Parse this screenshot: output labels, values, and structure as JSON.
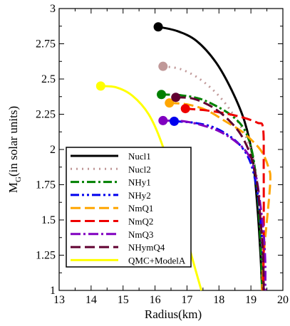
{
  "chart_data": {
    "type": "line",
    "xlabel": "Radius(km)",
    "ylabel_main": "M",
    "ylabel_sub": "G",
    "ylabel_rest": "(in solar units)",
    "xlim": [
      13,
      20
    ],
    "ylim": [
      1,
      3
    ],
    "xticks": [
      "13",
      "14",
      "15",
      "16",
      "17",
      "18",
      "19",
      "20"
    ],
    "yticks": [
      "1",
      "1.25",
      "1.5",
      "1.75",
      "2",
      "2.25",
      "2.5",
      "2.75",
      "3"
    ],
    "grid": false,
    "legend_position": "bottom-left",
    "series": [
      {
        "name": "Nucl1",
        "color": "#000000",
        "dash": "",
        "width": 3,
        "x": [
          16.1,
          16.7,
          17.3,
          17.9,
          18.4,
          18.8,
          19.05,
          19.2,
          19.3,
          19.35
        ],
        "y": [
          2.87,
          2.84,
          2.77,
          2.62,
          2.42,
          2.2,
          1.95,
          1.6,
          1.25,
          1.0
        ]
      },
      {
        "name": "Nucl2",
        "color": "#c09898",
        "dash": "2,6",
        "width": 3,
        "x": [
          16.25,
          16.8,
          17.4,
          18.0,
          18.5,
          18.9,
          19.15,
          19.3,
          19.38,
          19.42
        ],
        "y": [
          2.59,
          2.57,
          2.5,
          2.38,
          2.23,
          2.06,
          1.85,
          1.55,
          1.25,
          1.0
        ]
      },
      {
        "name": "NHy1",
        "color": "#008000",
        "dash": "12,4,3,4",
        "width": 3,
        "x": [
          16.2,
          16.8,
          17.4,
          17.9,
          18.4,
          18.8,
          19.05,
          19.2,
          19.3,
          19.35
        ],
        "y": [
          2.39,
          2.385,
          2.36,
          2.31,
          2.24,
          2.14,
          1.97,
          1.7,
          1.35,
          1.0
        ]
      },
      {
        "name": "NHy2",
        "color": "#0000ee",
        "dash": "12,4,3,4,3,4",
        "width": 3,
        "x": [
          16.6,
          17.2,
          17.8,
          18.3,
          18.7,
          19.0,
          19.2,
          19.32,
          19.38,
          19.4
        ],
        "y": [
          2.2,
          2.19,
          2.16,
          2.1,
          2.02,
          1.9,
          1.7,
          1.45,
          1.2,
          1.0
        ]
      },
      {
        "name": "NmQ1",
        "color": "#ffa500",
        "dash": "14,6",
        "width": 3,
        "x": [
          16.45,
          17.0,
          17.6,
          18.2,
          18.7,
          19.05,
          19.35,
          19.55,
          19.6,
          19.4,
          19.35
        ],
        "y": [
          2.33,
          2.32,
          2.28,
          2.2,
          2.13,
          2.06,
          1.98,
          1.87,
          1.75,
          1.25,
          1.0
        ]
      },
      {
        "name": "NmQ2",
        "color": "#ee0000",
        "dash": "14,6",
        "width": 3,
        "x": [
          16.95,
          17.5,
          18.1,
          18.7,
          19.2,
          19.38,
          19.4,
          19.4,
          19.38
        ],
        "y": [
          2.29,
          2.28,
          2.26,
          2.23,
          2.19,
          2.15,
          1.85,
          1.3,
          1.0
        ]
      },
      {
        "name": "NmQ3",
        "color": "#8000c0",
        "dash": "14,4,3,4",
        "width": 3,
        "x": [
          16.25,
          16.9,
          17.5,
          18.0,
          18.5,
          18.9,
          19.15,
          19.3,
          19.4,
          19.45,
          19.45
        ],
        "y": [
          2.205,
          2.2,
          2.17,
          2.13,
          2.06,
          1.97,
          1.82,
          1.6,
          1.4,
          1.2,
          1.0
        ]
      },
      {
        "name": "NHymQ4",
        "color": "#600030",
        "dash": "14,6",
        "width": 3,
        "x": [
          16.65,
          17.2,
          17.8,
          18.3,
          18.7,
          19.0,
          19.2,
          19.3,
          19.38,
          19.4
        ],
        "y": [
          2.37,
          2.36,
          2.3,
          2.21,
          2.1,
          1.95,
          1.75,
          1.5,
          1.25,
          1.0
        ]
      },
      {
        "name": "QMC+ModelA",
        "color": "#ffff00",
        "dash": "",
        "width": 3,
        "x": [
          14.3,
          14.8,
          15.3,
          15.8,
          16.2,
          16.6,
          16.9,
          17.2,
          17.45
        ],
        "y": [
          2.45,
          2.44,
          2.38,
          2.25,
          2.05,
          1.75,
          1.45,
          1.2,
          1.0
        ]
      }
    ]
  }
}
